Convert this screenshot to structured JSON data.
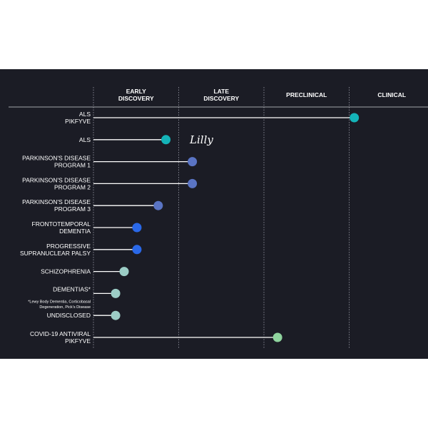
{
  "chart_data": {
    "type": "bar",
    "title": "",
    "stages": [
      "EARLY|DISCOVERY",
      "LATE|DISCOVERY",
      "PRECLINICAL",
      "CLINICAL"
    ],
    "logo": "Lilly",
    "rows": [
      {
        "label": "ALS|PIKFYVE",
        "value": 3.06,
        "color": "#14b3b8"
      },
      {
        "label": "ALS",
        "value": 0.85,
        "color": "#14b3b8",
        "logo": true
      },
      {
        "label": "PARKINSON'S DISEASE|PROGRAM 1",
        "value": 1.16,
        "color": "#5a74c4"
      },
      {
        "label": "PARKINSON'S DISEASE|PROGRAM 2",
        "value": 1.16,
        "color": "#5a74c4"
      },
      {
        "label": "PARKINSON'S DISEASE|PROGRAM 3",
        "value": 0.76,
        "color": "#5a74c4"
      },
      {
        "label": "FRONTOTEMPORAL|DEMENTIA",
        "value": 0.51,
        "color": "#2a68e8"
      },
      {
        "label": "PROGRESSIVE|SUPRANUCLEAR PALSY",
        "value": 0.51,
        "color": "#2a68e8"
      },
      {
        "label": "SCHIZOPHRENIA",
        "value": 0.36,
        "color": "#9ccdc6"
      },
      {
        "label": "DEMENTIAS*",
        "value": 0.26,
        "color": "#9ccdc6",
        "note": "*Lewy Body Dementia, Corticobasal|Degeneration, Pick's Disease"
      },
      {
        "label": "UNDISCLOSED",
        "value": 0.26,
        "color": "#9ccdc6"
      },
      {
        "label": "COVID-19 ANTIVIRAL|PIKFYVE",
        "value": 2.16,
        "color": "#8fd49e"
      }
    ],
    "xlim": [
      0,
      4
    ],
    "grid": "dotted vertical stage dividers"
  }
}
